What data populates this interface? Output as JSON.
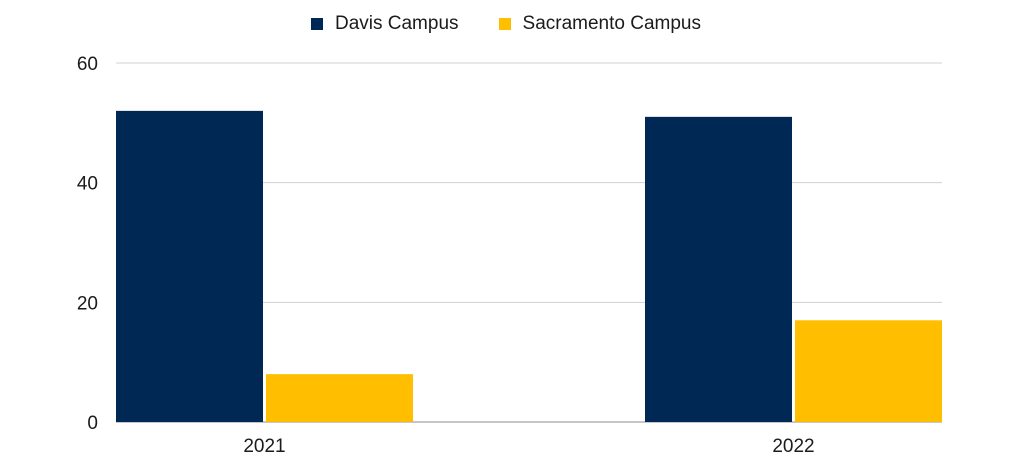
{
  "chart_data": {
    "type": "bar",
    "title": "",
    "xlabel": "",
    "ylabel": "",
    "categories": [
      "2021",
      "2022"
    ],
    "series": [
      {
        "name": "Davis Campus",
        "color": "#002855",
        "values": [
          52,
          51
        ]
      },
      {
        "name": "Sacramento Campus",
        "color": "#FFBF00",
        "values": [
          8,
          17
        ]
      }
    ],
    "ylim": [
      0,
      60
    ],
    "yticks": [
      "0",
      "20",
      "40",
      "60"
    ],
    "grid": true,
    "legend_position": "top-center"
  }
}
